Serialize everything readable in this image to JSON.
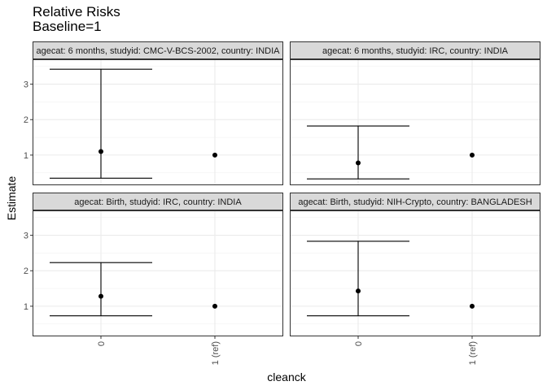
{
  "chart_data": {
    "type": "scatter",
    "title": "Relative Risks",
    "subtitle": "Baseline=1",
    "xlabel": "cleanck",
    "ylabel": "Estimate",
    "categories": [
      "0",
      "1 (ref)"
    ],
    "ylim": [
      0.15,
      3.7
    ],
    "yticks": [
      1,
      2,
      3
    ],
    "grid": true,
    "panels": [
      {
        "strip": "agecat: 6 months, studyid: CMC-V-BCS-2002, country: INDIA",
        "points": [
          {
            "x": "0",
            "estimate": 1.1,
            "lower": 0.35,
            "upper": 3.42
          },
          {
            "x": "1 (ref)",
            "estimate": 1.0
          }
        ]
      },
      {
        "strip": "agecat: 6 months, studyid: IRC, country: INDIA",
        "points": [
          {
            "x": "0",
            "estimate": 0.78,
            "lower": 0.33,
            "upper": 1.82
          },
          {
            "x": "1 (ref)",
            "estimate": 1.0
          }
        ]
      },
      {
        "strip": "agecat: Birth, studyid: IRC, country: INDIA",
        "points": [
          {
            "x": "0",
            "estimate": 1.28,
            "lower": 0.73,
            "upper": 2.23
          },
          {
            "x": "1 (ref)",
            "estimate": 1.0
          }
        ]
      },
      {
        "strip": "agecat: Birth, studyid: NIH-Crypto, country: BANGLADESH",
        "points": [
          {
            "x": "0",
            "estimate": 1.43,
            "lower": 0.73,
            "upper": 2.83
          },
          {
            "x": "1 (ref)",
            "estimate": 1.0
          }
        ]
      }
    ]
  }
}
